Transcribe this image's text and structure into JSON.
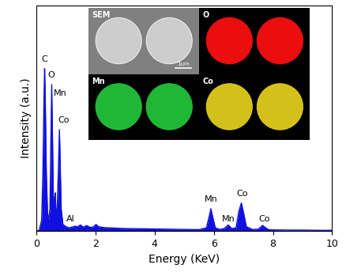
{
  "chart_data": {
    "type": "area",
    "x_label": "Energy (KeV)",
    "y_label": "Intensity (a.u.)",
    "color": "#1010e0",
    "x": [
      0,
      0.1,
      0.18,
      0.22,
      0.26,
      0.28,
      0.3,
      0.34,
      0.38,
      0.42,
      0.46,
      0.5,
      0.52,
      0.54,
      0.58,
      0.62,
      0.64,
      0.66,
      0.7,
      0.74,
      0.78,
      0.8,
      0.84,
      0.9,
      1.0,
      1.1,
      1.2,
      1.3,
      1.4,
      1.49,
      1.58,
      1.7,
      1.8,
      1.9,
      2.02,
      2.1,
      2.3,
      2.6,
      3.0,
      3.5,
      4.0,
      4.5,
      5.0,
      5.5,
      5.75,
      5.85,
      5.9,
      5.95,
      6.05,
      6.2,
      6.35,
      6.49,
      6.6,
      6.75,
      6.85,
      6.93,
      7.0,
      7.1,
      7.3,
      7.5,
      7.6,
      7.65,
      7.7,
      7.85,
      8.0,
      8.5,
      9.0,
      9.5,
      10.0
    ],
    "values": [
      0,
      0.5,
      5,
      25,
      60,
      72,
      62,
      25,
      8,
      5,
      10,
      48,
      65,
      48,
      12,
      15,
      17,
      10,
      8,
      25,
      45,
      35,
      10,
      3,
      2,
      1.5,
      1.8,
      2.2,
      2,
      2.8,
      1.8,
      2.5,
      1.8,
      1.7,
      3,
      2,
      1.6,
      1.4,
      1.2,
      1.1,
      1.0,
      0.9,
      0.8,
      0.7,
      1.5,
      7,
      10,
      7,
      1.5,
      0.8,
      1.2,
      2.8,
      1.2,
      1.5,
      9,
      12.5,
      8.5,
      2,
      0.8,
      0.9,
      2,
      2.6,
      2,
      0.7,
      0.6,
      0.5,
      0.5,
      0.4,
      0.4
    ],
    "xlim": [
      0,
      10
    ],
    "xticks": [
      0,
      2,
      4,
      6,
      8,
      10
    ],
    "ylim": [
      0,
      100
    ],
    "yticks": [],
    "tick_labels": "x",
    "annotations": [
      {
        "text": "C",
        "x": 0.28,
        "y": 76
      },
      {
        "text": "O",
        "x": 0.5,
        "y": 69
      },
      {
        "text": "Mn",
        "x": 0.8,
        "y": 61
      },
      {
        "text": "Co",
        "x": 0.92,
        "y": 49
      },
      {
        "text": "Al",
        "x": 1.15,
        "y": 5.5
      },
      {
        "text": "Mn",
        "x": 5.9,
        "y": 14
      },
      {
        "text": "Mn",
        "x": 6.49,
        "y": 5.5
      },
      {
        "text": "Co",
        "x": 6.95,
        "y": 16.5
      },
      {
        "text": "Co",
        "x": 7.7,
        "y": 5.5
      }
    ],
    "inset": {
      "panels": [
        {
          "label": "SEM",
          "color": "#d4d4d4"
        },
        {
          "label": "O",
          "color": "#ff1010"
        },
        {
          "label": "Mn",
          "color": "#22c83a"
        },
        {
          "label": "Co",
          "color": "#e6d21e"
        }
      ],
      "scale_bar": "1um"
    }
  }
}
